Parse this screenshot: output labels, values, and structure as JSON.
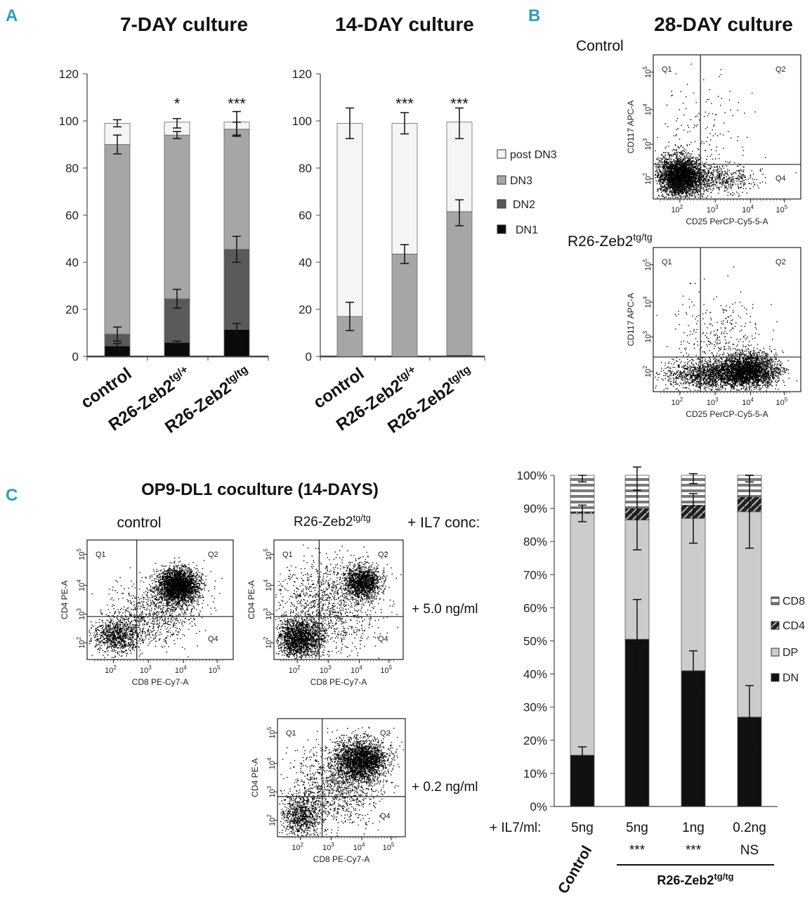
{
  "panels": {
    "A": "A",
    "B": "B",
    "C": "C"
  },
  "headers": {
    "seven": "7-DAY culture",
    "fourteen": "14-DAY culture",
    "twentyeight": "28-DAY culture",
    "op9": "OP9-DL1 coculture (14-DAYS)"
  },
  "chart_data": [
    {
      "type": "bar",
      "stacked": true,
      "title": "7-DAY culture",
      "categories": [
        "control",
        "R26-Zeb2tg/+",
        "R26-Zeb2tg/tg"
      ],
      "series": [
        {
          "name": "DN1",
          "values": [
            4.5,
            6,
            11.5
          ]
        },
        {
          "name": "DN2",
          "values": [
            5,
            18.5,
            34
          ]
        },
        {
          "name": "DN3",
          "values": [
            80.5,
            69.5,
            51
          ]
        },
        {
          "name": "post DN3",
          "values": [
            9,
            5.5,
            3
          ]
        }
      ],
      "error_bar_tops": [
        {
          "center": [
            4.5,
            6,
            11.5
          ],
          "err": [
            1,
            0.5,
            2.5
          ]
        },
        {
          "center": [
            9.5,
            24.5,
            45.5
          ],
          "err": [
            3,
            4,
            5.5
          ]
        },
        {
          "center": [
            90,
            94,
            96.5
          ],
          "err": [
            4,
            1.5,
            3
          ]
        },
        {
          "center": [
            99,
            99,
            99
          ],
          "err": [
            1.5,
            2,
            5
          ]
        }
      ],
      "significance": [
        "",
        "*",
        "***"
      ],
      "ylim": [
        0,
        120
      ],
      "yticks": [
        "0",
        "20",
        "40",
        "60",
        "80",
        "100",
        "120"
      ],
      "legend": [
        "post DN3",
        "DN3",
        "DN2",
        "DN1"
      ]
    },
    {
      "type": "bar",
      "stacked": true,
      "title": "14-DAY culture",
      "categories": [
        "control",
        "R26-Zeb2tg/+",
        "R26-Zeb2tg/tg"
      ],
      "series": [
        {
          "name": "DN1",
          "values": [
            0,
            0,
            0.5
          ]
        },
        {
          "name": "DN2",
          "values": [
            0,
            0,
            0
          ]
        },
        {
          "name": "DN3",
          "values": [
            17,
            43.5,
            61
          ]
        },
        {
          "name": "post DN3",
          "values": [
            82,
            55.5,
            38
          ]
        }
      ],
      "error_bar_tops": [
        {
          "center": [
            17,
            43.5,
            61
          ],
          "err": [
            6,
            4,
            5.5
          ]
        },
        {
          "center": [
            99,
            99,
            99
          ],
          "err": [
            6.5,
            4.5,
            6.5
          ]
        }
      ],
      "significance": [
        "",
        "***",
        "***"
      ],
      "ylim": [
        0,
        120
      ],
      "yticks": [
        "0",
        "20",
        "40",
        "60",
        "80",
        "100",
        "120"
      ]
    },
    {
      "type": "bar",
      "stacked": true,
      "title": "+ IL7/ml",
      "categories": [
        "5ng",
        "5ng",
        "1ng",
        "0.2ng"
      ],
      "group_labels": [
        "Control",
        "R26-Zeb2tg/tg"
      ],
      "series": [
        {
          "name": "DN",
          "values": [
            15.5,
            50.5,
            41,
            27
          ]
        },
        {
          "name": "DP",
          "values": [
            73,
            36,
            46,
            62
          ]
        },
        {
          "name": "CD4",
          "values": [
            0.5,
            3.5,
            4,
            4.5
          ]
        },
        {
          "name": "CD8",
          "values": [
            11,
            10,
            9,
            6.5
          ]
        }
      ],
      "error_bar_tops": [
        {
          "center": [
            15.5,
            50.5,
            41,
            27
          ],
          "err": [
            2.5,
            12,
            6,
            9.5
          ]
        },
        {
          "center": [
            88.5,
            86.5,
            87,
            89
          ],
          "err": [
            2.5,
            9,
            7.5,
            11
          ]
        },
        {
          "center": [
            99,
            99,
            99,
            99
          ],
          "err": [
            1,
            3.5,
            1.5,
            1
          ]
        }
      ],
      "significance": [
        "",
        "***",
        "***",
        "NS"
      ],
      "ylim": [
        0,
        100
      ],
      "yticks": [
        "0%",
        "10%",
        "20%",
        "30%",
        "40%",
        "50%",
        "60%",
        "70%",
        "80%",
        "90%",
        "100%"
      ],
      "legend": [
        "CD8",
        "CD4",
        "DP",
        "DN"
      ],
      "xlabel_prefix": "+ IL7/ml:"
    }
  ],
  "flow": {
    "b_control_label": "Control",
    "b_r26_label": "R26-Zeb2",
    "b_r26_sup": "tg/tg",
    "b_yaxis": "CD117 APC-A",
    "b_xaxis": "CD25 PerCP-Cy5-5-A",
    "quads": [
      "Q1",
      "Q2",
      "Q4"
    ],
    "c_control_label": "control",
    "c_r26_label": "R26-Zeb2",
    "c_r26_sup": "tg/tg",
    "il7_label": "+ IL7 conc:",
    "conc_high": "+ 5.0 ng/ml",
    "conc_low": "+ 0.2 ng/ml",
    "c_yaxis": "CD4 PE-A",
    "c_xaxis": "CD8 PE-Cy7-A",
    "log_ticks": [
      "10",
      "10",
      "10",
      "10"
    ],
    "log_exps": [
      "2",
      "3",
      "4",
      "5"
    ]
  },
  "colors": {
    "post_dn3": "#f5f5f5",
    "dn3": "#a6a6a6",
    "dn2": "#5a5a5a",
    "dn1": "#0a0a0a",
    "dp": "#cccccc",
    "dn": "#111111",
    "accent": "#2aa0b8"
  }
}
